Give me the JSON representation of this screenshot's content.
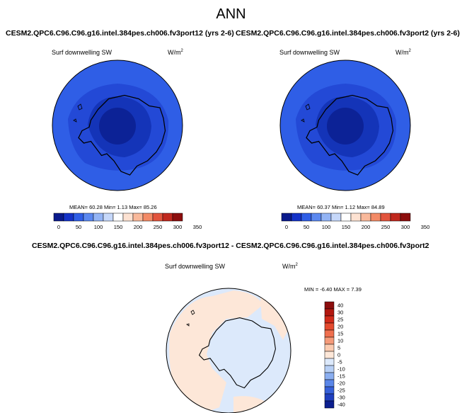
{
  "page": {
    "title": "ANN"
  },
  "panels": [
    {
      "case_title": "CESM2.QPC6.C96.C96.g16.intel.384pes.ch006.fv3port12 (yrs 2-6)",
      "variable": "Surf downwelling SW",
      "units": "W/m",
      "units_sup": "2",
      "stats": {
        "mean": "60.28",
        "min": "1.13",
        "max": "85.26",
        "text": "MEAN= 60.28  Min=   1.13  Max=  85.26"
      },
      "colorbar_labels": [
        "0",
        "50",
        "100",
        "150",
        "200",
        "250",
        "300",
        "350"
      ]
    },
    {
      "case_title": "CESM2.QPC6.C96.C96.g16.intel.384pes.ch006.fv3port2 (yrs 2-6)",
      "variable": "Surf downwelling SW",
      "units": "W/m",
      "units_sup": "2",
      "stats": {
        "mean": "60.37",
        "min": "1.12",
        "max": "84.89",
        "text": "MEAN= 60.37  Min=   1.12  Max=  84.89"
      },
      "colorbar_labels": [
        "0",
        "50",
        "100",
        "150",
        "200",
        "250",
        "300",
        "350"
      ]
    }
  ],
  "difference": {
    "title": "CESM2.QPC6.C96.C96.g16.intel.384pes.ch006.fv3port12 - CESM2.QPC6.C96.C96.g16.intel.384pes.ch006.fv3port2",
    "variable": "Surf downwelling SW",
    "units": "W/m",
    "units_sup": "2",
    "stats_text": "MIN = -6.40 MAX =  7.39",
    "colorbar_labels": [
      "40",
      "30",
      "25",
      "20",
      "15",
      "10",
      "5",
      "0",
      "-5",
      "-10",
      "-15",
      "-20",
      "-25",
      "-30",
      "-40"
    ]
  },
  "colors": {
    "abs_scale": [
      "#0a1a8c",
      "#1432c8",
      "#2f5ee6",
      "#5b88f0",
      "#93b4f5",
      "#c6d8fa",
      "#ffffff",
      "#fde2d2",
      "#f9b99b",
      "#f38a66",
      "#e2543d",
      "#c0281e",
      "#8c0d0d"
    ],
    "diff_scale": [
      "#8c0d0d",
      "#b2170f",
      "#d12a1a",
      "#e44a2e",
      "#ef6f4e",
      "#f59a79",
      "#fbcbb0",
      "#fde7d8",
      "#dce9fb",
      "#b7cff5",
      "#8aaef0",
      "#5a86e8",
      "#3660d9",
      "#1f3fbf",
      "#0c1f8f"
    ],
    "ocean_outer": "#2f5ee6",
    "ocean_mid": "#2349d6",
    "ocean_inner": "#1434b8",
    "ocean_core": "#0c2296",
    "diff_pos": "#fde7d8",
    "diff_neg": "#dce9fb"
  }
}
